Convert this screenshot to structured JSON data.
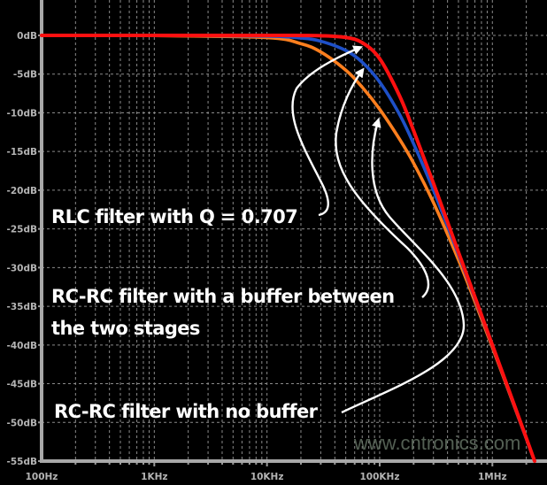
{
  "chart_data": {
    "type": "line",
    "title": "",
    "xlabel": "",
    "ylabel": "",
    "x_scale": "log",
    "xlim": [
      100,
      2370000
    ],
    "ylim": [
      -55,
      0
    ],
    "grid": true,
    "background": "#000000",
    "x_ticks": [
      {
        "value": 100,
        "label": "100Hz"
      },
      {
        "value": 1000,
        "label": "1KHz"
      },
      {
        "value": 10000,
        "label": "10KHz"
      },
      {
        "value": 100000,
        "label": "100KHz"
      },
      {
        "value": 1000000,
        "label": "1MHz"
      }
    ],
    "y_ticks": [
      {
        "value": 0,
        "label": "0dB"
      },
      {
        "value": -5,
        "label": "-5dB"
      },
      {
        "value": -10,
        "label": "-10dB"
      },
      {
        "value": -15,
        "label": "-15dB"
      },
      {
        "value": -20,
        "label": "-20dB"
      },
      {
        "value": -25,
        "label": "-25dB"
      },
      {
        "value": -30,
        "label": "-30dB"
      },
      {
        "value": -35,
        "label": "-35dB"
      },
      {
        "value": -40,
        "label": "-40dB"
      },
      {
        "value": -45,
        "label": "-45dB"
      },
      {
        "value": -50,
        "label": "-50dB"
      },
      {
        "value": -55,
        "label": "-55dB"
      }
    ],
    "x": [
      100,
      1000,
      10000,
      20000,
      30000,
      50000,
      70000,
      100000,
      150000,
      200000,
      300000,
      500000,
      700000,
      1000000,
      1500000,
      2000000,
      2370000
    ],
    "series": [
      {
        "color": "#ff7f1e",
        "values": [
          0,
          -0.03,
          -0.29,
          -1.07,
          -2.14,
          -4.49,
          -6.69,
          -9.54,
          -13.4,
          -16.5,
          -21.6,
          -29.0,
          -34.4,
          -40.3,
          -47.2,
          -52.1,
          -55.0
        ]
      },
      {
        "color": "#1e50c8",
        "values": [
          0,
          0,
          -0.09,
          -0.34,
          -0.75,
          -1.94,
          -3.46,
          -6.02,
          -10.2,
          -14.0,
          -20.0,
          -28.3,
          -34.0,
          -40.1,
          -47.1,
          -52.1,
          -55.0
        ]
      },
      {
        "color": "#ff1010",
        "values": [
          0,
          0,
          0,
          -0.01,
          -0.04,
          -0.26,
          -0.94,
          -3.01,
          -7.8,
          -12.3,
          -19.1,
          -28.0,
          -33.8,
          -40.0,
          -47.0,
          -52.0,
          -55.0
        ]
      }
    ],
    "annotations": [
      {
        "text": "RLC filter with Q = 0.707"
      },
      {
        "text": "RC-RC filter with a buffer between"
      },
      {
        "text": "the two stages"
      },
      {
        "text": "RC-RC filter with no buffer"
      }
    ]
  },
  "watermark": "www.cntronics.com"
}
